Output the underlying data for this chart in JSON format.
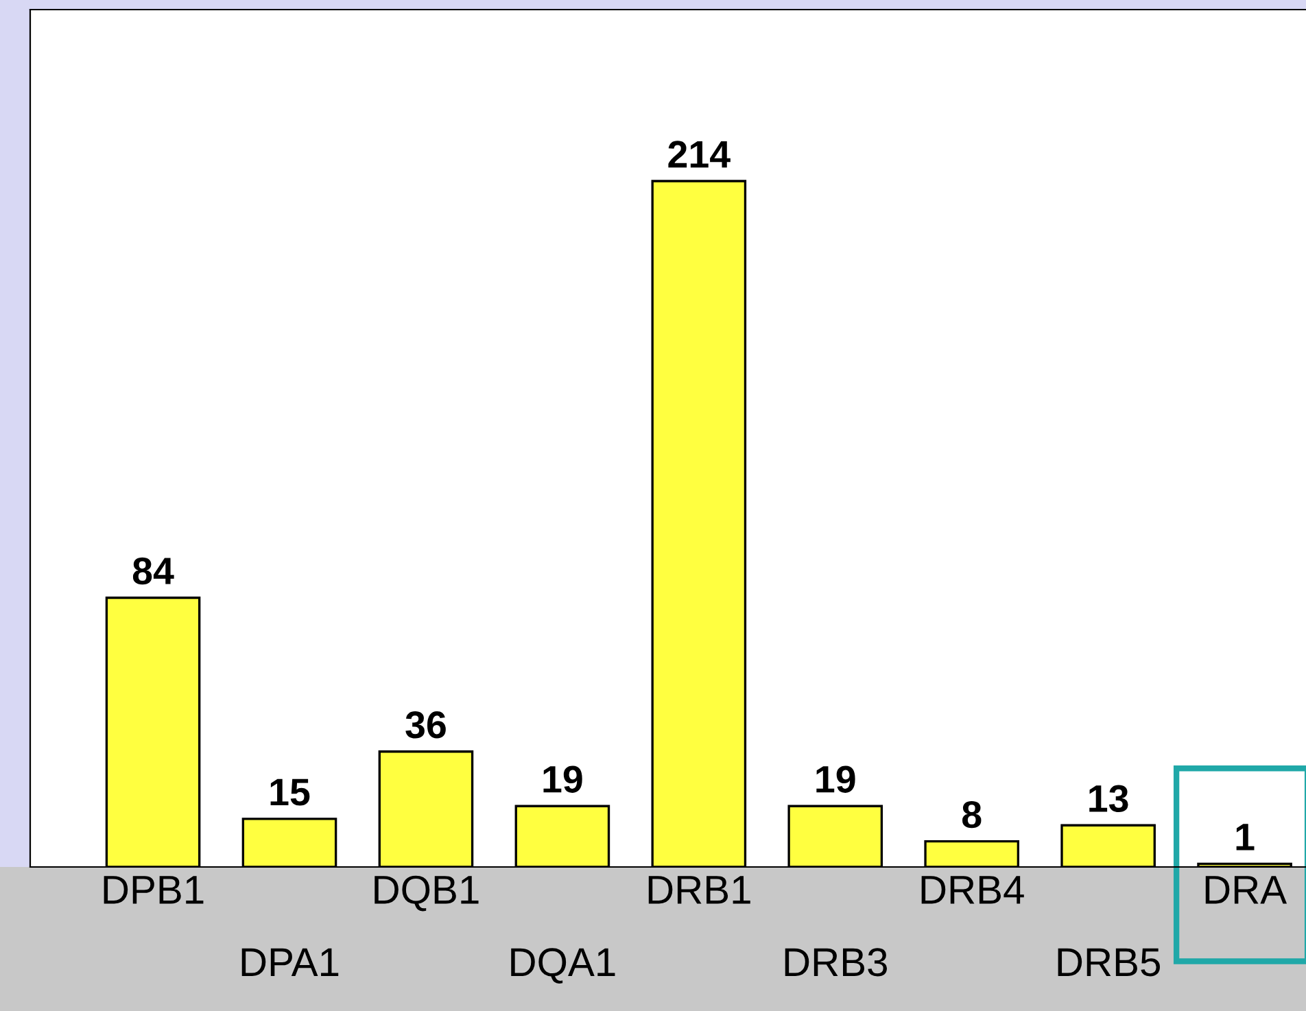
{
  "chart_data": {
    "type": "bar",
    "categories": [
      "DPB1",
      "DPA1",
      "DQB1",
      "DQA1",
      "DRB1",
      "DRB3",
      "DRB4",
      "DRB5",
      "DRA"
    ],
    "values": [
      84,
      15,
      36,
      19,
      214,
      19,
      8,
      13,
      1
    ],
    "color": "#ffff40",
    "data_labels": true
  }
}
